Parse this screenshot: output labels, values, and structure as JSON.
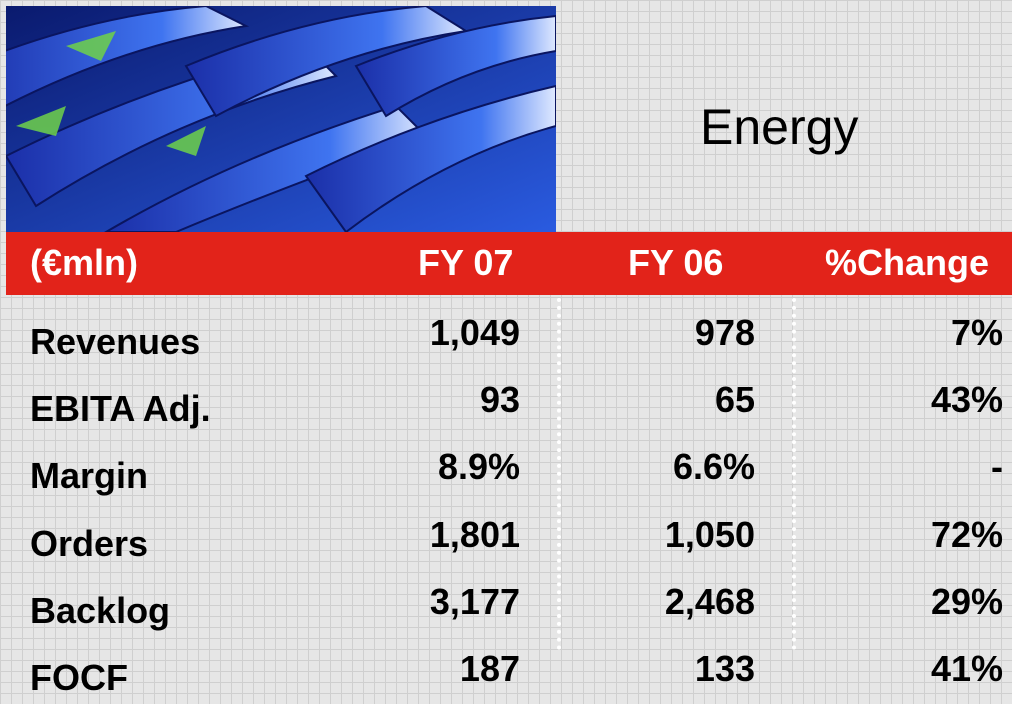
{
  "header": {
    "title": "Energy"
  },
  "table": {
    "columns": [
      "(€mln)",
      "FY 07",
      "FY 06",
      "%Change"
    ],
    "rows": [
      [
        "Revenues",
        "1,049",
        "978",
        "7%"
      ],
      [
        "EBITA Adj.",
        "93",
        "65",
        "43%"
      ],
      [
        "Margin",
        "8.9%",
        "6.6%",
        "-"
      ],
      [
        "Orders",
        "1,801",
        "1,050",
        "72%"
      ],
      [
        "Backlog",
        "3,177",
        "2,468",
        "29%"
      ],
      [
        "FOCF",
        "187",
        "133",
        "41%"
      ]
    ]
  }
}
